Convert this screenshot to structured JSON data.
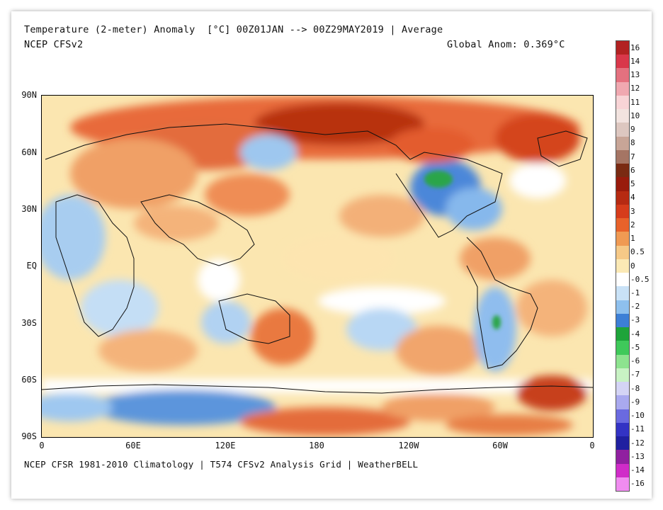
{
  "header": {
    "title": "Temperature (2-meter) Anomaly  [°C] 00Z01JAN --> 00Z29MAY2019 | Average",
    "model": "NCEP CFSv2",
    "global_anomaly": "Global Anom: 0.369°C"
  },
  "footer": {
    "source": "NCEP CFSR 1981-2010 Climatology | T574 CFSv2 Analysis Grid | WeatherBELL"
  },
  "axes": {
    "lat_labels": [
      "90N",
      "60N",
      "30N",
      "EQ",
      "30S",
      "60S",
      "90S"
    ],
    "lon_labels": [
      "0",
      "60E",
      "120E",
      "180",
      "120W",
      "60W",
      "0"
    ]
  },
  "colorbar": {
    "labels": [
      "16",
      "14",
      "13",
      "12",
      "11",
      "10",
      "9",
      "8",
      "7",
      "6",
      "5",
      "4",
      "3",
      "2",
      "1",
      "0.5",
      "0",
      "-0.5",
      "-1",
      "-2",
      "-3",
      "-4",
      "-5",
      "-6",
      "-7",
      "-8",
      "-9",
      "-10",
      "-11",
      "-12",
      "-13",
      "-14",
      "-16"
    ],
    "colors": [
      "#b22222",
      "#d9374a",
      "#e4717f",
      "#f0a8b0",
      "#f8d4d6",
      "#f2e3df",
      "#ddc7c0",
      "#c8a597",
      "#a57564",
      "#7a2a12",
      "#991b0c",
      "#b62a12",
      "#d63c1b",
      "#e8622a",
      "#f09a53",
      "#f6c987",
      "#fbe9b5",
      "#ffffff",
      "#c9e2f7",
      "#8ec0ee",
      "#3d7fd6",
      "#1ea43a",
      "#3fc95a",
      "#8de38f",
      "#c8f2c4",
      "#d4d4f5",
      "#a9a9ef",
      "#6a6ae0",
      "#3333c4",
      "#2020a0",
      "#9020a0",
      "#d02cc8",
      "#f08cf0"
    ]
  },
  "map_legend_note": ""
}
